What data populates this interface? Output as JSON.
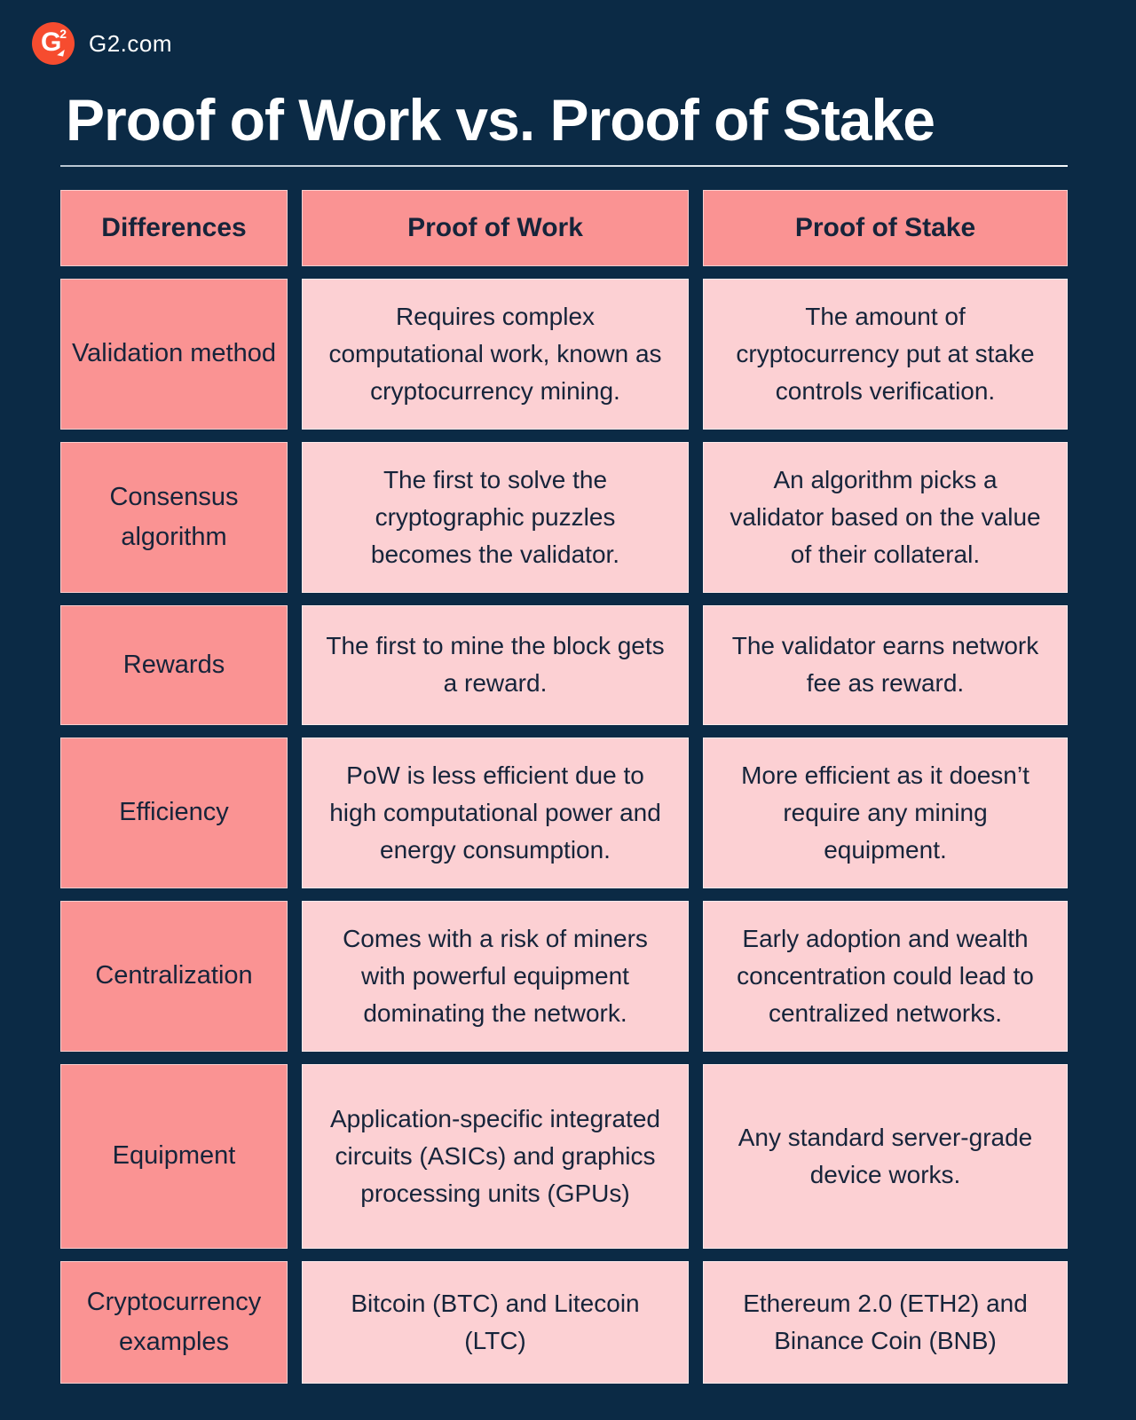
{
  "brand": {
    "name": "G2.com",
    "logo_letter": "G",
    "logo_superscript": "2"
  },
  "title": "Proof of Work vs. Proof of Stake",
  "table": {
    "headers": [
      "Differences",
      "Proof of Work",
      "Proof of Stake"
    ],
    "rows": [
      {
        "label": "Validation method",
        "pow": "Requires complex computational work, known as cryptocurrency mining.",
        "pos": "The amount of cryptocurrency put at stake controls verification."
      },
      {
        "label": "Consensus algorithm",
        "pow": "The first to solve the cryptographic puzzles becomes the validator.",
        "pos": "An algorithm picks a validator based on the value of their collateral."
      },
      {
        "label": "Rewards",
        "pow": "The first to mine the block gets a reward.",
        "pos": "The validator earns network fee as reward."
      },
      {
        "label": "Efficiency",
        "pow": "PoW is less efficient due to high computational power and energy consumption.",
        "pos": "More efficient as it doesn’t require any mining equipment."
      },
      {
        "label": "Centralization",
        "pow": "Comes with a risk of miners with powerful equipment dominating the network.",
        "pos": "Early adoption and wealth concentration could lead to centralized networks."
      },
      {
        "label": "Equipment",
        "pow": "Application-specific integrated circuits (ASICs) and graphics processing units (GPUs)",
        "pos": "Any standard server-grade device works."
      },
      {
        "label": "Cryptocurrency examples",
        "pow": "Bitcoin (BTC) and Litecoin (LTC)",
        "pos": "Ethereum 2.0 (ETH2) and Binance Coin (BNB)"
      }
    ]
  },
  "colors": {
    "background_navy": "#0B2A45",
    "brand_red": "#F64C2F",
    "header_salmon": "#FA9393",
    "content_pink": "#FCD0D3",
    "text_dark": "#16243A",
    "title_white": "#FFFFFF"
  }
}
